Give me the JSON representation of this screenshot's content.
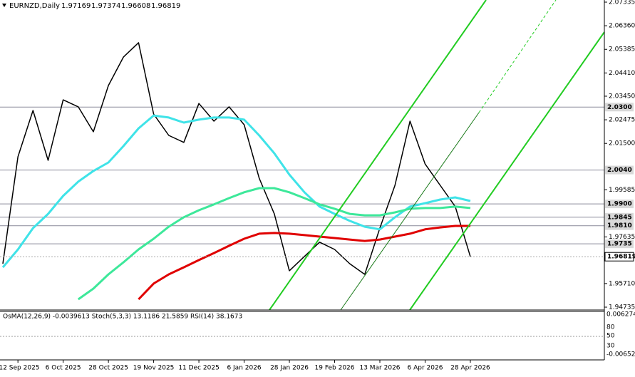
{
  "chart_data": {
    "type": "line",
    "title": "EURNZD,Daily",
    "ohlc": [
      1.97169,
      1.97374,
      1.96608,
      1.96819
    ],
    "categories": [
      null,
      "12 Sep 2025",
      null,
      null,
      "6 Oct 2025",
      null,
      null,
      "28 Oct 2025",
      null,
      null,
      "19 Nov 2025",
      null,
      null,
      "11 Dec 2025",
      null,
      null,
      "6 Jan 2026",
      null,
      null,
      "28 Jan 2026",
      null,
      null,
      "19 Feb 2026",
      null,
      null,
      "13 Mar 2026",
      null,
      null,
      "6 Apr 2026",
      null,
      null,
      "28 Apr 2026"
    ],
    "series": [
      {
        "color": "#000000",
        "values": [
          1.9653,
          2.0095,
          2.0286,
          2.008,
          2.033,
          2.0301,
          2.0198,
          2.0389,
          2.0507,
          2.0566,
          2.0271,
          2.0183,
          2.0154,
          2.0315,
          2.0242,
          2.0301,
          2.0227,
          2.0006,
          1.9859,
          1.9624,
          1.9683,
          1.9742,
          1.9712,
          1.9653,
          1.9609,
          1.98,
          1.9977,
          2.0242,
          2.0065,
          1.9977,
          1.9889,
          1.9682
        ]
      },
      {
        "color": "#3fe3e8",
        "values": [
          1.9638,
          1.9712,
          1.98,
          1.9859,
          1.9933,
          1.9992,
          2.0036,
          2.0071,
          2.0139,
          2.0212,
          2.0265,
          2.0257,
          2.0236,
          2.0248,
          2.0257,
          2.0257,
          2.0248,
          2.0183,
          2.0109,
          2.0021,
          1.9948,
          1.9889,
          1.9859,
          1.983,
          1.9806,
          1.9795,
          1.9845,
          1.9889,
          1.9903,
          1.9918,
          1.9927,
          1.9912
        ]
      },
      {
        "color": "#3de89a",
        "values": [
          null,
          null,
          null,
          null,
          null,
          1.9506,
          1.955,
          1.9609,
          1.9659,
          1.9712,
          1.9756,
          1.9806,
          1.9845,
          1.9874,
          1.9898,
          1.9924,
          1.9948,
          1.9965,
          1.9965,
          1.9948,
          1.9924,
          1.9898,
          1.988,
          1.9859,
          1.9853,
          1.9853,
          1.9865,
          1.988,
          1.9883,
          1.9883,
          1.9889,
          1.9883
        ]
      },
      {
        "color": "#e00000",
        "values": [
          null,
          null,
          null,
          null,
          null,
          null,
          null,
          null,
          null,
          1.9506,
          1.9571,
          1.9609,
          1.9638,
          1.9668,
          1.9697,
          1.9727,
          1.9756,
          1.9777,
          1.978,
          1.9777,
          1.9771,
          1.9765,
          1.9759,
          1.9753,
          1.9747,
          1.9753,
          1.9765,
          1.9777,
          1.9795,
          1.9803,
          1.9809,
          1.9809
        ]
      }
    ],
    "ylim": [
      1.94735,
      2.07335
    ],
    "yticks": [
      2.07335,
      {
        "value": 2.0636,
        "label": "2.06360"
      },
      2.05385,
      {
        "value": 2.0441,
        "label": "2.04410"
      },
      {
        "value": 2.0345,
        "label": "2.03450"
      },
      2.02475,
      {
        "value": 2.015,
        "label": "2.01500"
      },
      1.99585,
      1.97635,
      {
        "value": 1.9571,
        "label": "1.95710"
      },
      1.94735
    ],
    "levels": [
      {
        "value": 2.03,
        "label": "2.0300"
      },
      {
        "value": 2.004,
        "label": "2.0040"
      },
      {
        "value": 1.99,
        "label": "1.9900"
      },
      1.9845,
      {
        "value": 1.981,
        "label": "1.9810"
      },
      1.9735
    ]
  },
  "indicator_pane": {
    "legend": "OsMA(12,26,9) -0.0039613  Stoch(5,3,3) 13.1186 21.5859  RSI(14) 38.1673",
    "scale_labels": [
      "0.006274",
      "80",
      "50",
      "30",
      "-0.006525"
    ]
  }
}
